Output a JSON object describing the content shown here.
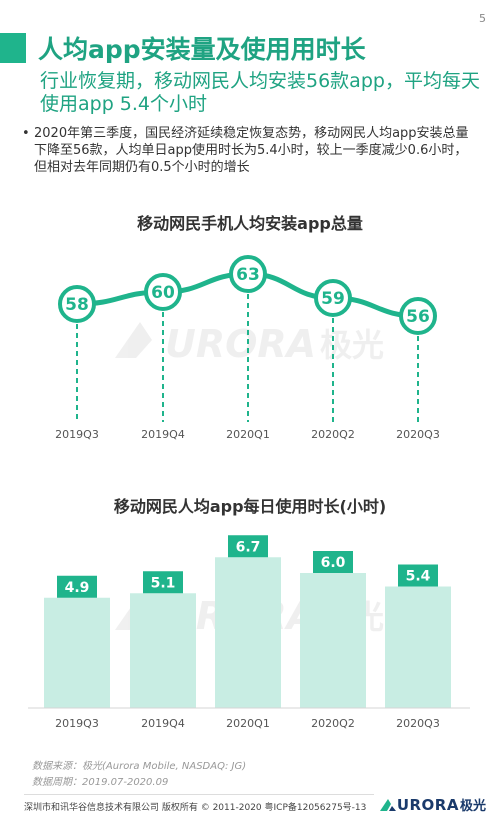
{
  "page_number": "5",
  "title": "人均app安装量及使用用时长",
  "subtitle": "行业恢复期，移动网民人均安装56款app，平均每天使用app 5.4个小时",
  "bullet_text": "2020年第三季度，国民经济延续稳定恢复态势，移动网民人均app安装总量下降至56款，人均单日app使用时长为5.4小时，较上一季度减少0.6小时，但相对去年同期仍有0.5个小时的增长",
  "watermark": {
    "text": "URORA",
    "cn": "极光"
  },
  "colors": {
    "accent": "#1fb48c",
    "bar": "#c8ede3",
    "label_bg": "#1fb48c"
  },
  "chart_data": [
    {
      "type": "line",
      "title": "移动网民手机人均安装app总量",
      "categories": [
        "2019Q3",
        "2019Q4",
        "2020Q1",
        "2020Q2",
        "2020Q3"
      ],
      "values": [
        58,
        60,
        63,
        59,
        56
      ],
      "ylim": [
        50,
        68
      ],
      "grid": false
    },
    {
      "type": "bar",
      "title": "移动网民人均app每日使用时长(小时)",
      "categories": [
        "2019Q3",
        "2019Q4",
        "2020Q1",
        "2020Q2",
        "2020Q3"
      ],
      "values": [
        4.9,
        5.1,
        6.7,
        6.0,
        5.4
      ],
      "ylim": [
        0,
        7
      ],
      "grid": false
    }
  ],
  "source_label": "数据来源：极光(Aurora Mobile, NASDAQ: JG)",
  "period_label": "数据周期：2019.07-2020.09",
  "footer_text": "深圳市和讯华谷信息技术有限公司 版权所有 © 2011-2020 粤ICP备12056275号-13",
  "footer_logo": {
    "text": "URORA",
    "cn": "极光"
  }
}
